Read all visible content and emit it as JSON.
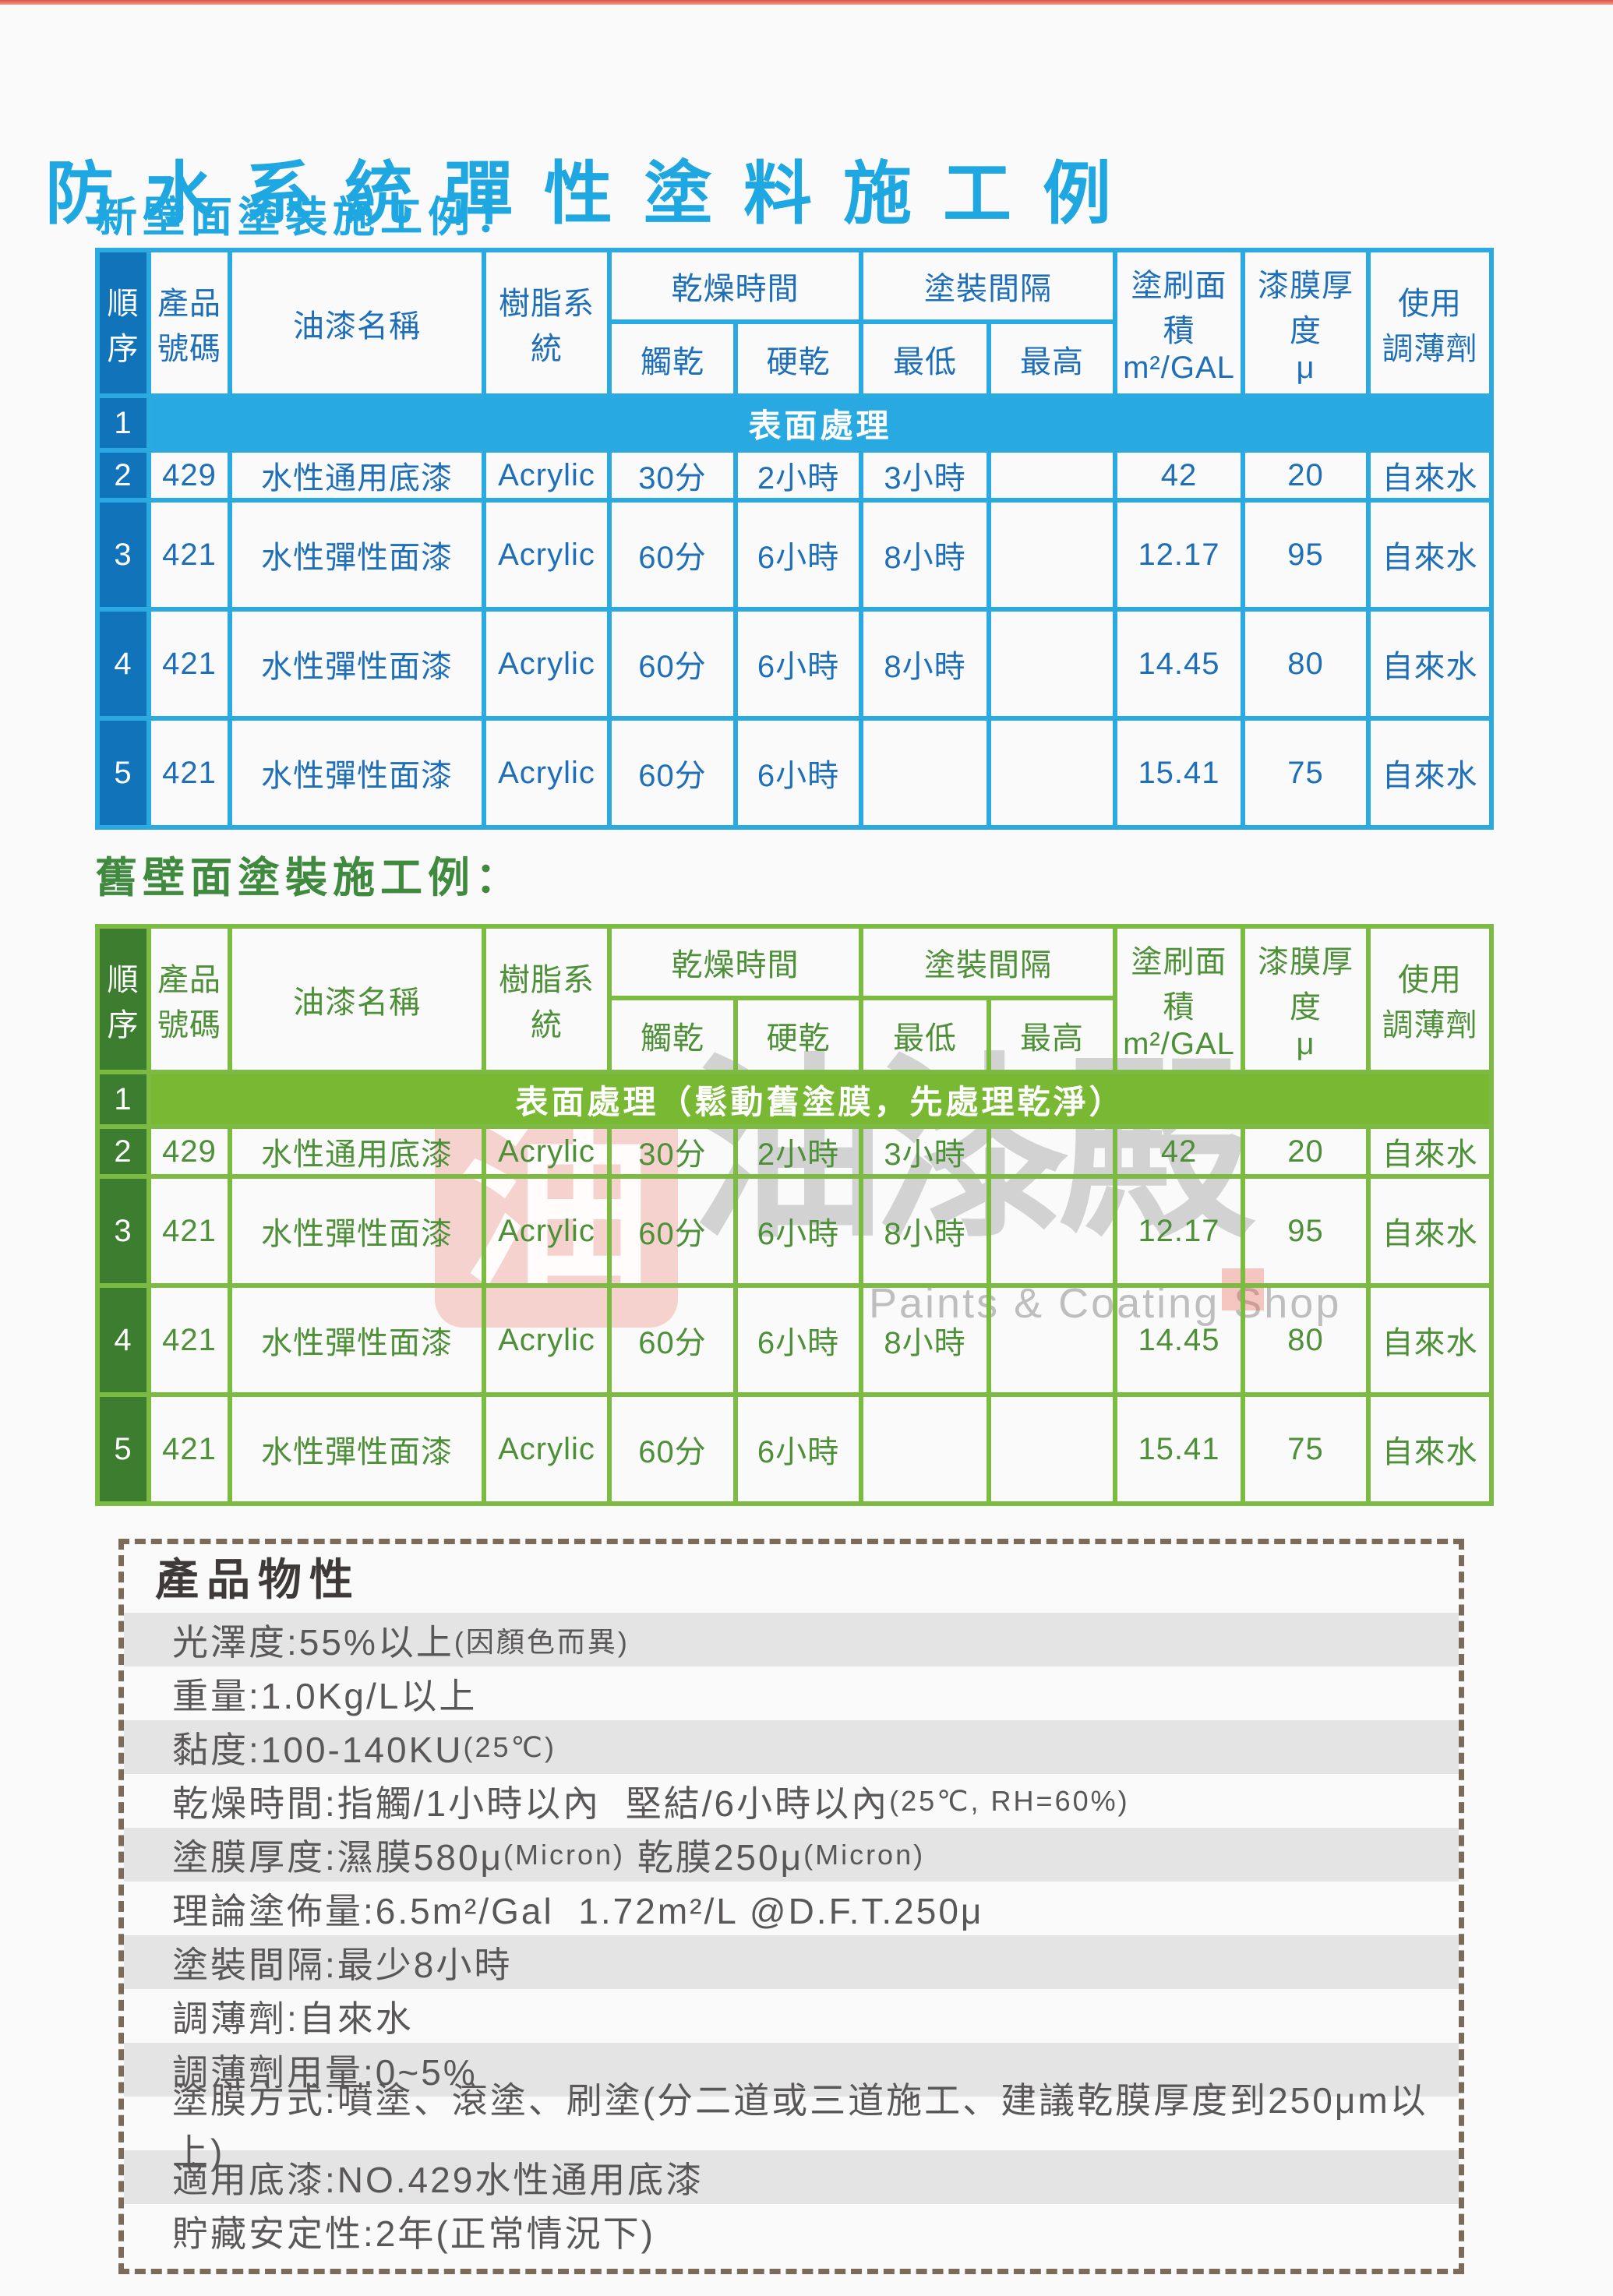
{
  "page": {
    "background": "#fafafa",
    "top_bar_colors": [
      "#dd5346",
      "#f2988d"
    ]
  },
  "title": {
    "text": "防水系統彈性塗料施工例",
    "color": "#1ea7e0"
  },
  "table_header": {
    "seq": [
      "順",
      "序"
    ],
    "product_no": [
      "產品",
      "號碼"
    ],
    "paint_name": "油漆名稱",
    "resin_system": "樹脂系統",
    "drying_time": "乾燥時間",
    "touch_dry": "觸乾",
    "hard_dry": "硬乾",
    "recoat_interval": "塗裝間隔",
    "min": "最低",
    "max": "最高",
    "area": [
      "塗刷面積",
      "m²/GAL"
    ],
    "thickness": [
      "漆膜厚度",
      "μ"
    ],
    "thinner": [
      "使用",
      "調薄劑"
    ]
  },
  "tables": [
    {
      "id": "new-wall",
      "heading": "新壁面塗裝施工例：",
      "theme": {
        "heading_color": "#1ea7e0",
        "border": "#2ba9e1",
        "seq_bg": "#1173b9",
        "banner_bg": "#29a9e1",
        "text": "#1e6fb8"
      },
      "banner": {
        "seq": "1",
        "text": "表面處理"
      },
      "rows": [
        {
          "seq": "2",
          "cells": [
            "429",
            "水性通用底漆",
            "Acrylic",
            "30分",
            "2小時",
            "3小時",
            "",
            "42",
            "20",
            "自來水"
          ]
        },
        {
          "seq": "3",
          "cells": [
            "421",
            "水性彈性面漆",
            "Acrylic",
            "60分",
            "6小時",
            "8小時",
            "",
            "12.17",
            "95",
            "自來水"
          ]
        },
        {
          "seq": "4",
          "cells": [
            "421",
            "水性彈性面漆",
            "Acrylic",
            "60分",
            "6小時",
            "8小時",
            "",
            "14.45",
            "80",
            "自來水"
          ]
        },
        {
          "seq": "5",
          "cells": [
            "421",
            "水性彈性面漆",
            "Acrylic",
            "60分",
            "6小時",
            "",
            "",
            "15.41",
            "75",
            "自來水"
          ]
        }
      ]
    },
    {
      "id": "old-wall",
      "heading": "舊壁面塗裝施工例：",
      "theme": {
        "heading_color": "#3f8a3f",
        "border": "#7cbb41",
        "seq_bg": "#3c7d2f",
        "banner_bg": "#78b833",
        "text": "#4d9038"
      },
      "banner": {
        "seq": "1",
        "text": "表面處理（鬆動舊塗膜，先處理乾淨）"
      },
      "rows": [
        {
          "seq": "2",
          "cells": [
            "429",
            "水性通用底漆",
            "Acrylic",
            "30分",
            "2小時",
            "3小時",
            "",
            "42",
            "20",
            "自來水"
          ]
        },
        {
          "seq": "3",
          "cells": [
            "421",
            "水性彈性面漆",
            "Acrylic",
            "60分",
            "6小時",
            "8小時",
            "",
            "12.17",
            "95",
            "自來水"
          ]
        },
        {
          "seq": "4",
          "cells": [
            "421",
            "水性彈性面漆",
            "Acrylic",
            "60分",
            "6小時",
            "8小時",
            "",
            "14.45",
            "80",
            "自來水"
          ]
        },
        {
          "seq": "5",
          "cells": [
            "421",
            "水性彈性面漆",
            "Acrylic",
            "60分",
            "6小時",
            "",
            "",
            "15.41",
            "75",
            "自來水"
          ]
        }
      ]
    }
  ],
  "watermark": {
    "seal_char": "油",
    "brand_chars": "油漆殿",
    "subtitle": "Paints & Coating Shop"
  },
  "properties": {
    "heading": "產品物性",
    "rows": [
      {
        "shaded": true,
        "segments": [
          {
            "t": "光澤度:55%以上"
          },
          {
            "t": "(因顏色而異)",
            "small": true
          }
        ]
      },
      {
        "shaded": false,
        "segments": [
          {
            "t": "重量:1.0Kg/L以上"
          }
        ]
      },
      {
        "shaded": true,
        "segments": [
          {
            "t": "黏度:100-140KU"
          },
          {
            "t": "(25℃)",
            "small": true
          }
        ]
      },
      {
        "shaded": false,
        "segments": [
          {
            "t": "乾燥時間:指觸/1小時以內  堅結/6小時以內"
          },
          {
            "t": "(25℃, RH=60%)",
            "small": true
          }
        ]
      },
      {
        "shaded": true,
        "segments": [
          {
            "t": "塗膜厚度:濕膜580μ"
          },
          {
            "t": "(Micron)",
            "small": true
          },
          {
            "t": " 乾膜250μ"
          },
          {
            "t": "(Micron)",
            "small": true
          }
        ]
      },
      {
        "shaded": false,
        "segments": [
          {
            "t": "理論塗佈量:6.5m²/Gal  1.72m²/L @D.F.T.250μ"
          }
        ]
      },
      {
        "shaded": true,
        "segments": [
          {
            "t": "塗裝間隔:最少8小時"
          }
        ]
      },
      {
        "shaded": false,
        "segments": [
          {
            "t": "調薄劑:自來水"
          }
        ]
      },
      {
        "shaded": true,
        "segments": [
          {
            "t": "調薄劑用量:0~5%"
          }
        ]
      },
      {
        "shaded": false,
        "segments": [
          {
            "t": "塗膜方式:噴塗、滾塗、刷塗(分二道或三道施工、建議乾膜厚度到250μm以上)"
          }
        ]
      },
      {
        "shaded": true,
        "segments": [
          {
            "t": "適用底漆:NO.429水性通用底漆"
          }
        ]
      },
      {
        "shaded": false,
        "segments": [
          {
            "t": "貯藏安定性:2年(正常情況下)"
          }
        ]
      }
    ]
  }
}
